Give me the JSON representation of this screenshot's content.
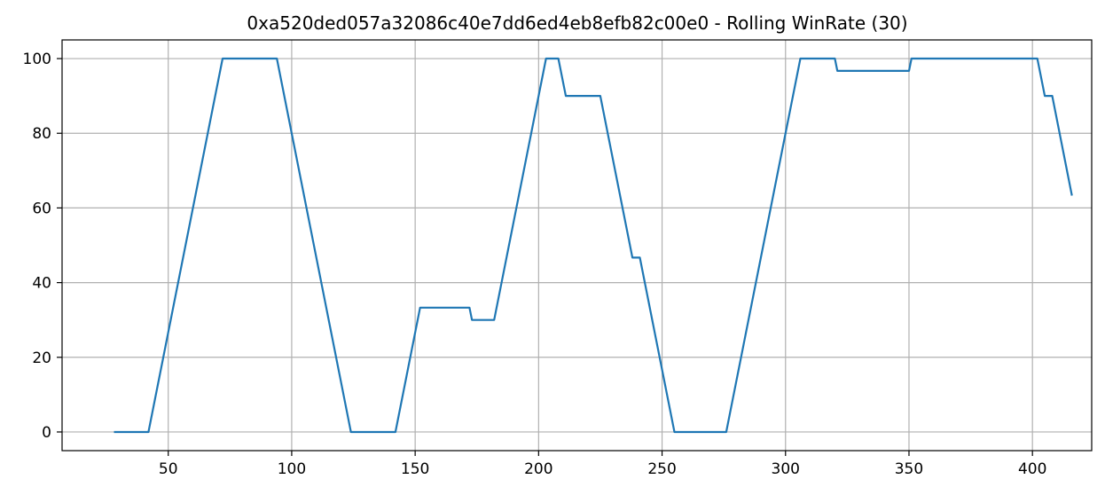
{
  "chart_data": {
    "type": "line",
    "title": "0xa520ded057a32086c40e7dd6ed4eb8efb82c00e0 - Rolling WinRate (30)",
    "xlabel": "",
    "ylabel": "",
    "xlim": [
      7,
      424
    ],
    "ylim": [
      -5,
      105
    ],
    "xticks": [
      50,
      100,
      150,
      200,
      250,
      300,
      350,
      400
    ],
    "yticks": [
      0,
      20,
      40,
      60,
      80,
      100
    ],
    "grid": true,
    "line_color": "#1f77b4",
    "series": [
      {
        "points": [
          [
            28,
            0
          ],
          [
            42,
            0
          ],
          [
            72,
            100
          ],
          [
            94,
            100
          ],
          [
            124,
            0
          ],
          [
            142,
            0
          ],
          [
            152,
            33.3
          ],
          [
            172,
            33.3
          ],
          [
            173,
            30
          ],
          [
            182,
            30
          ],
          [
            203,
            100
          ],
          [
            208,
            100
          ],
          [
            211,
            90
          ],
          [
            225,
            90
          ],
          [
            238,
            46.7
          ],
          [
            241,
            46.7
          ],
          [
            255,
            0
          ],
          [
            276,
            0
          ],
          [
            306,
            100
          ],
          [
            320,
            100
          ],
          [
            321,
            96.7
          ],
          [
            350,
            96.7
          ],
          [
            351,
            100
          ],
          [
            402,
            100
          ],
          [
            405,
            90
          ],
          [
            408,
            90
          ],
          [
            416,
            63.3
          ]
        ]
      }
    ]
  }
}
